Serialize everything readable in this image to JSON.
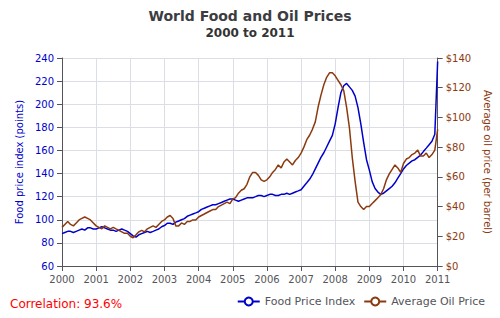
{
  "chart_data": {
    "type": "line",
    "title": "World Food and Oil Prices",
    "subtitle": "2000 to 2011",
    "ylabel": "Food price index (points)",
    "y2label": "Average oil price (per barrel)",
    "annotations": [
      "Correlation: 93.6%"
    ],
    "legend": "lower right",
    "grid": true,
    "xlim": [
      2000,
      2011
    ],
    "xticks": [
      2000,
      2001,
      2002,
      2003,
      2004,
      2005,
      2006,
      2007,
      2008,
      2009,
      2010,
      2011
    ],
    "ylim": [
      60,
      240
    ],
    "yticks": [
      60,
      80,
      100,
      120,
      140,
      160,
      180,
      200,
      220,
      240
    ],
    "y2lim": [
      0,
      140
    ],
    "y2ticks": [
      {
        "value": 0,
        "label": "$0"
      },
      {
        "value": 20,
        "label": "$20"
      },
      {
        "value": 40,
        "label": "$40"
      },
      {
        "value": 60,
        "label": "$60"
      },
      {
        "value": 80,
        "label": "$80"
      },
      {
        "value": 100,
        "label": "$100"
      },
      {
        "value": 120,
        "label": "$120"
      },
      {
        "value": 140,
        "label": "$140"
      }
    ],
    "x": [
      2000.0,
      2000.083,
      2000.167,
      2000.25,
      2000.333,
      2000.417,
      2000.5,
      2000.583,
      2000.667,
      2000.75,
      2000.833,
      2000.917,
      2001.0,
      2001.083,
      2001.167,
      2001.25,
      2001.333,
      2001.417,
      2001.5,
      2001.583,
      2001.667,
      2001.75,
      2001.833,
      2001.917,
      2002.0,
      2002.083,
      2002.167,
      2002.25,
      2002.333,
      2002.417,
      2002.5,
      2002.583,
      2002.667,
      2002.75,
      2002.833,
      2002.917,
      2003.0,
      2003.083,
      2003.167,
      2003.25,
      2003.333,
      2003.417,
      2003.5,
      2003.583,
      2003.667,
      2003.75,
      2003.833,
      2003.917,
      2004.0,
      2004.083,
      2004.167,
      2004.25,
      2004.333,
      2004.417,
      2004.5,
      2004.583,
      2004.667,
      2004.75,
      2004.833,
      2004.917,
      2005.0,
      2005.083,
      2005.167,
      2005.25,
      2005.333,
      2005.417,
      2005.5,
      2005.583,
      2005.667,
      2005.75,
      2005.833,
      2005.917,
      2006.0,
      2006.083,
      2006.167,
      2006.25,
      2006.333,
      2006.417,
      2006.5,
      2006.583,
      2006.667,
      2006.75,
      2006.833,
      2006.917,
      2007.0,
      2007.083,
      2007.167,
      2007.25,
      2007.333,
      2007.417,
      2007.5,
      2007.583,
      2007.667,
      2007.75,
      2007.833,
      2007.917,
      2008.0,
      2008.083,
      2008.167,
      2008.25,
      2008.333,
      2008.417,
      2008.5,
      2008.583,
      2008.667,
      2008.75,
      2008.833,
      2008.917,
      2009.0,
      2009.083,
      2009.167,
      2009.25,
      2009.333,
      2009.417,
      2009.5,
      2009.583,
      2009.667,
      2009.75,
      2009.833,
      2009.917,
      2010.0,
      2010.083,
      2010.167,
      2010.25,
      2010.333,
      2010.417,
      2010.5,
      2010.583,
      2010.667,
      2010.75,
      2010.833,
      2010.917,
      2011.0
    ],
    "series": [
      {
        "name": "Food Price Index",
        "color": "#0000CC",
        "axis": "y",
        "values": [
          88,
          89,
          90,
          90,
          89,
          90,
          91,
          92,
          91,
          93,
          93,
          92,
          92,
          93,
          94,
          93,
          92,
          91,
          91,
          90,
          91,
          92,
          91,
          90,
          88,
          86,
          85,
          87,
          88,
          89,
          90,
          89,
          90,
          91,
          92,
          94,
          95,
          97,
          97,
          96,
          98,
          99,
          100,
          101,
          103,
          104,
          105,
          106,
          107,
          109,
          110,
          111,
          112,
          113,
          113,
          114,
          115,
          116,
          117,
          118,
          118,
          117,
          116,
          117,
          118,
          119,
          119,
          119,
          120,
          121,
          121,
          120,
          121,
          122,
          122,
          121,
          121,
          122,
          122,
          123,
          122,
          123,
          124,
          125,
          126,
          129,
          132,
          135,
          139,
          144,
          149,
          154,
          158,
          163,
          168,
          173,
          183,
          197,
          210,
          216,
          218,
          215,
          212,
          207,
          197,
          183,
          167,
          152,
          143,
          133,
          127,
          124,
          122,
          123,
          125,
          127,
          129,
          132,
          136,
          140,
          144,
          147,
          149,
          151,
          152,
          154,
          156,
          159,
          162,
          165,
          168,
          174,
          237
        ]
      },
      {
        "name": "Average Oil Price",
        "color": "#8B3A0F",
        "axis": "y2",
        "values": [
          26,
          28,
          30,
          28,
          27,
          29,
          31,
          32,
          33,
          32,
          31,
          29,
          27,
          26,
          25,
          27,
          26,
          25,
          26,
          25,
          24,
          23,
          22,
          22,
          20,
          19,
          21,
          23,
          24,
          23,
          25,
          26,
          27,
          26,
          28,
          30,
          31,
          33,
          34,
          32,
          27,
          27,
          29,
          28,
          30,
          30,
          31,
          31,
          33,
          34,
          35,
          36,
          37,
          38,
          38,
          40,
          41,
          42,
          43,
          42,
          45,
          46,
          49,
          51,
          52,
          55,
          60,
          63,
          63,
          61,
          58,
          57,
          58,
          60,
          63,
          65,
          68,
          66,
          70,
          72,
          70,
          68,
          71,
          73,
          76,
          80,
          85,
          88,
          92,
          97,
          107,
          115,
          122,
          127,
          130,
          130,
          128,
          125,
          122,
          118,
          107,
          93,
          73,
          57,
          43,
          40,
          38,
          40,
          40,
          42,
          44,
          46,
          48,
          52,
          58,
          62,
          65,
          68,
          66,
          63,
          69,
          72,
          73,
          75,
          76,
          78,
          74,
          74,
          76,
          73,
          75,
          78,
          92
        ]
      }
    ]
  }
}
